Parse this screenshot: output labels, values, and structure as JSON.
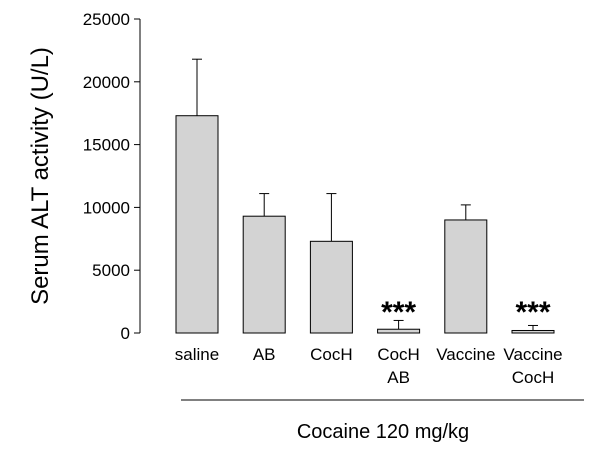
{
  "chart_data": {
    "type": "bar",
    "title": "",
    "xlabel": "",
    "ylabel": "Serum ALT activity (U/L)",
    "ylim": [
      0,
      25000
    ],
    "yticks": [
      "0",
      "5000",
      "10000",
      "15000",
      "20000",
      "25000"
    ],
    "categories": [
      [
        "saline"
      ],
      [
        "AB"
      ],
      [
        "CocH"
      ],
      [
        "CocH",
        "AB"
      ],
      [
        "Vaccine"
      ],
      [
        "Vaccine",
        "CocH"
      ]
    ],
    "values": [
      17300,
      9300,
      7300,
      300,
      9000,
      200
    ],
    "error_plus": [
      4500,
      1800,
      3800,
      700,
      1200,
      400
    ],
    "annotations": [
      "",
      "",
      "",
      "***",
      "",
      "***"
    ],
    "group_label": "Cocaine 120 mg/kg",
    "grid": false,
    "bar_color": "#d3d3d3"
  }
}
